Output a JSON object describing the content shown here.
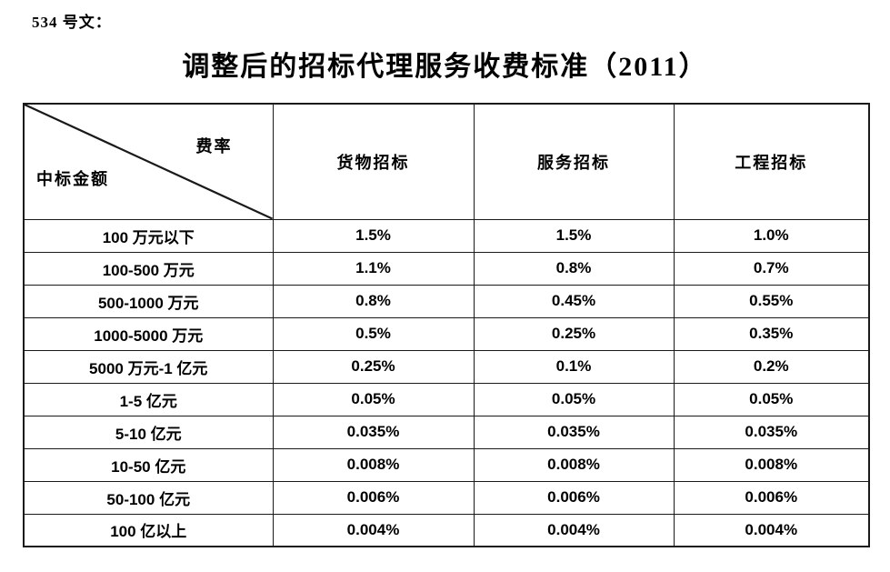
{
  "page": {
    "doc_label": "534 号文：",
    "title": "调整后的招标代理服务收费标准（2011）",
    "background_color": "#ffffff",
    "text_color": "#000000",
    "border_color": "#1a1a1a"
  },
  "table": {
    "corner": {
      "top_right_label": "费率",
      "bottom_left_label": "中标金额"
    },
    "columns": [
      "货物招标",
      "服务招标",
      "工程招标"
    ],
    "rows": [
      {
        "label": "100 万元以下",
        "values": [
          "1.5%",
          "1.5%",
          "1.0%"
        ]
      },
      {
        "label": "100-500 万元",
        "values": [
          "1.1%",
          "0.8%",
          "0.7%"
        ]
      },
      {
        "label": "500-1000 万元",
        "values": [
          "0.8%",
          "0.45%",
          "0.55%"
        ]
      },
      {
        "label": "1000-5000 万元",
        "values": [
          "0.5%",
          "0.25%",
          "0.35%"
        ]
      },
      {
        "label": "5000 万元-1 亿元",
        "values": [
          "0.25%",
          "0.1%",
          "0.2%"
        ]
      },
      {
        "label": "1-5 亿元",
        "values": [
          "0.05%",
          "0.05%",
          "0.05%"
        ]
      },
      {
        "label": "5-10 亿元",
        "values": [
          "0.035%",
          "0.035%",
          "0.035%"
        ]
      },
      {
        "label": "10-50 亿元",
        "values": [
          "0.008%",
          "0.008%",
          "0.008%"
        ]
      },
      {
        "label": "50-100 亿元",
        "values": [
          "0.006%",
          "0.006%",
          "0.006%"
        ]
      },
      {
        "label": "100 亿以上",
        "values": [
          "0.004%",
          "0.004%",
          "0.004%"
        ]
      }
    ]
  }
}
